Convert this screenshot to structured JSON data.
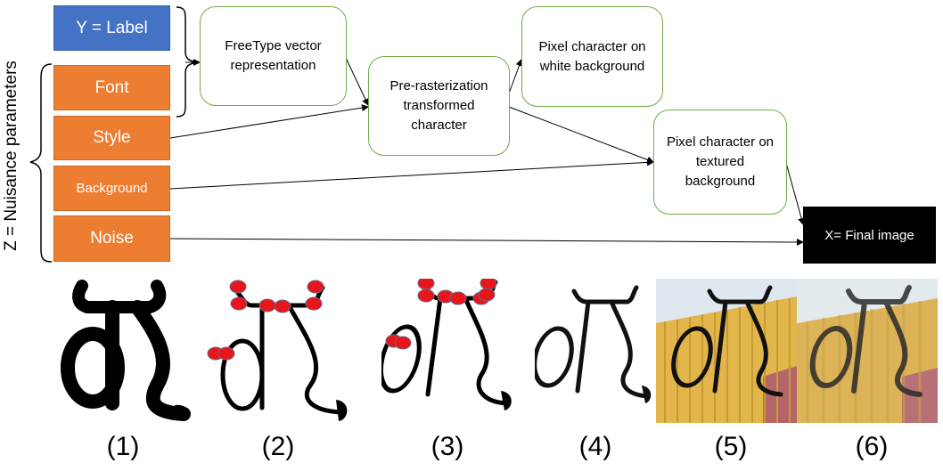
{
  "nodes": {
    "label": "Y = Label",
    "font": "Font",
    "style": "Style",
    "background": "Background",
    "noise": "Noise",
    "freetype": "FreeType vector representation",
    "prerast": "Pre-rasterization transformed character",
    "pixel_white": "Pixel character on white background",
    "pixel_textured": "Pixel character on textured background",
    "final": "X= Final image"
  },
  "nuisance_label": "Z = Nuisance parameters",
  "captions": [
    "(1)",
    "(2)",
    "(3)",
    "(4)",
    "(5)",
    "(6)"
  ],
  "colors": {
    "blue": "#4472c4",
    "orange": "#ed7d31",
    "green_border": "#70ad47",
    "red_dot": "#e8151b"
  }
}
